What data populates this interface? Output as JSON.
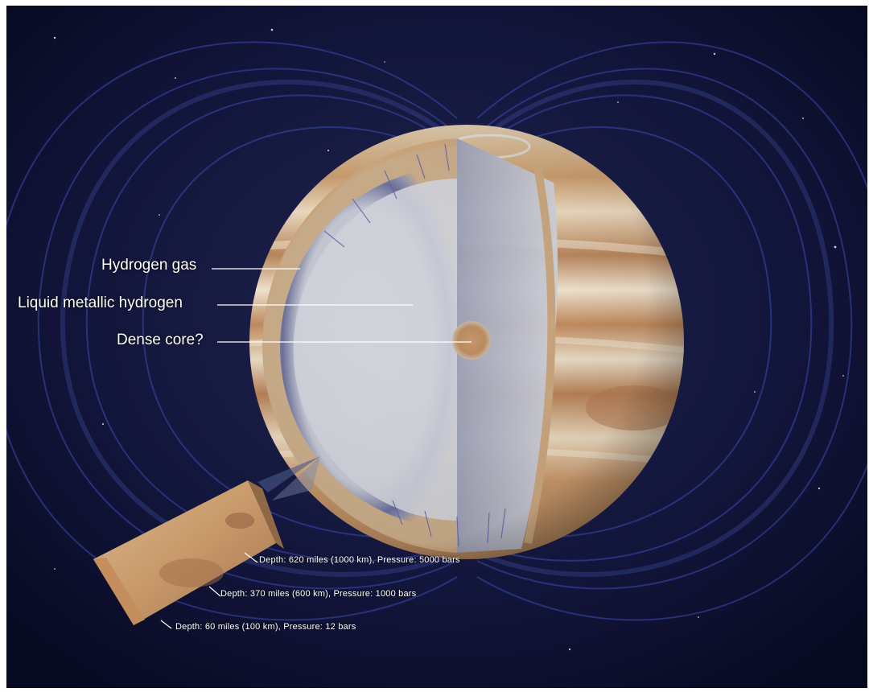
{
  "labels": {
    "hydrogen_gas": "Hydrogen gas",
    "liquid_metallic_hydrogen": "Liquid metallic hydrogen",
    "dense_core": "Dense core?",
    "depth_620": "Depth: 620 miles (1000 km), Pressure: 5000 bars",
    "depth_370": "Depth: 370 miles (600 km), Pressure: 1000 bars",
    "depth_60": "Depth: 60 miles (100 km), Pressure: 12 bars"
  },
  "colors": {
    "space": "#0b0e26",
    "field_lines": "#3a4aa8",
    "interior": "#c9ccd6",
    "metallic_band": "#4a4f80",
    "jupiter_band_light": "#e8dcc8",
    "jupiter_band_dark": "#b9865a",
    "core": "#b98a5e"
  }
}
